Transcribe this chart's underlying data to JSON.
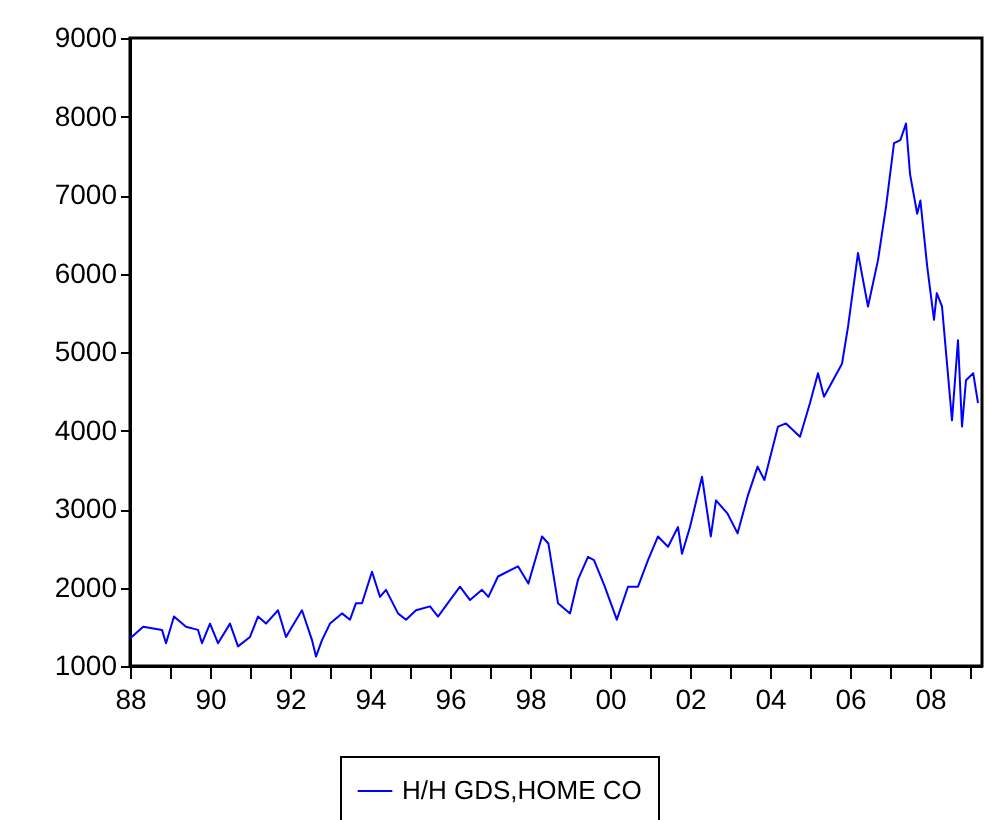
{
  "chart_data": {
    "type": "line",
    "x": [
      1988.0,
      1988.33,
      1988.8,
      1988.9,
      1989.1,
      1989.4,
      1989.7,
      1989.8,
      1990.0,
      1990.2,
      1990.5,
      1990.7,
      1991.0,
      1991.2,
      1991.4,
      1991.7,
      1991.9,
      1992.1,
      1992.3,
      1992.55,
      1992.65,
      1992.8,
      1993.0,
      1993.3,
      1993.5,
      1993.65,
      1993.8,
      1994.05,
      1994.25,
      1994.4,
      1994.7,
      1994.9,
      1995.15,
      1995.5,
      1995.7,
      1996.0,
      1996.25,
      1996.5,
      1996.8,
      1996.96,
      1997.2,
      1997.7,
      1997.96,
      1998.3,
      1998.46,
      1998.7,
      1999.0,
      1999.2,
      1999.45,
      1999.6,
      1999.87,
      2000.17,
      2000.45,
      2000.7,
      2000.95,
      2001.2,
      2001.45,
      2001.7,
      2001.8,
      2002.0,
      2002.3,
      2002.52,
      2002.65,
      2002.94,
      2003.19,
      2003.44,
      2003.69,
      2003.86,
      2004.2,
      2004.4,
      2004.75,
      2005.0,
      2005.2,
      2005.35,
      2005.8,
      2005.95,
      2006.2,
      2006.45,
      2006.7,
      2006.9,
      2007.1,
      2007.26,
      2007.4,
      2007.5,
      2007.68,
      2007.76,
      2007.93,
      2008.1,
      2008.17,
      2008.3,
      2008.55,
      2008.7,
      2008.8,
      2008.9,
      2009.08,
      2009.2
    ],
    "series": [
      {
        "name": "H/H GDS,HOME CO",
        "color": "#0000ff",
        "values": [
          1350,
          1500,
          1460,
          1290,
          1630,
          1500,
          1460,
          1290,
          1540,
          1290,
          1540,
          1250,
          1370,
          1630,
          1540,
          1710,
          1370,
          1540,
          1710,
          1330,
          1120,
          1330,
          1540,
          1670,
          1590,
          1800,
          1800,
          2200,
          1880,
          1970,
          1670,
          1590,
          1710,
          1760,
          1630,
          1840,
          2010,
          1840,
          1970,
          1880,
          2140,
          2270,
          2050,
          2650,
          2560,
          1800,
          1670,
          2100,
          2390,
          2350,
          2010,
          1590,
          2010,
          2010,
          2350,
          2650,
          2520,
          2770,
          2430,
          2770,
          3410,
          2650,
          3110,
          2940,
          2690,
          3160,
          3540,
          3370,
          4050,
          4090,
          3920,
          4350,
          4730,
          4430,
          4850,
          5320,
          6260,
          5580,
          6170,
          6850,
          7660,
          7700,
          7910,
          7270,
          6760,
          6930,
          6090,
          5410,
          5750,
          5580,
          4130,
          5150,
          4050,
          4640,
          4730,
          4350
        ]
      }
    ],
    "xlim": [
      1988,
      2009.3
    ],
    "xticks": [
      {
        "value": 1988,
        "label": "88"
      },
      {
        "value": 1989,
        "label": null
      },
      {
        "value": 1990,
        "label": "90"
      },
      {
        "value": 1991,
        "label": null
      },
      {
        "value": 1992,
        "label": "92"
      },
      {
        "value": 1993,
        "label": null
      },
      {
        "value": 1994,
        "label": "94"
      },
      {
        "value": 1995,
        "label": null
      },
      {
        "value": 1996,
        "label": "96"
      },
      {
        "value": 1997,
        "label": null
      },
      {
        "value": 1998,
        "label": "98"
      },
      {
        "value": 1999,
        "label": null
      },
      {
        "value": 2000,
        "label": "00"
      },
      {
        "value": 2001,
        "label": null
      },
      {
        "value": 2002,
        "label": "02"
      },
      {
        "value": 2003,
        "label": null
      },
      {
        "value": 2004,
        "label": "04"
      },
      {
        "value": 2005,
        "label": null
      },
      {
        "value": 2006,
        "label": "06"
      },
      {
        "value": 2007,
        "label": null
      },
      {
        "value": 2008,
        "label": "08"
      },
      {
        "value": 2009,
        "label": null
      }
    ],
    "ylim": [
      1000,
      9000
    ],
    "yticks": [
      1000,
      2000,
      3000,
      4000,
      5000,
      6000,
      7000,
      8000,
      9000
    ],
    "grid": false,
    "legend": "bottom",
    "marker": "none",
    "line_style": "solid"
  }
}
